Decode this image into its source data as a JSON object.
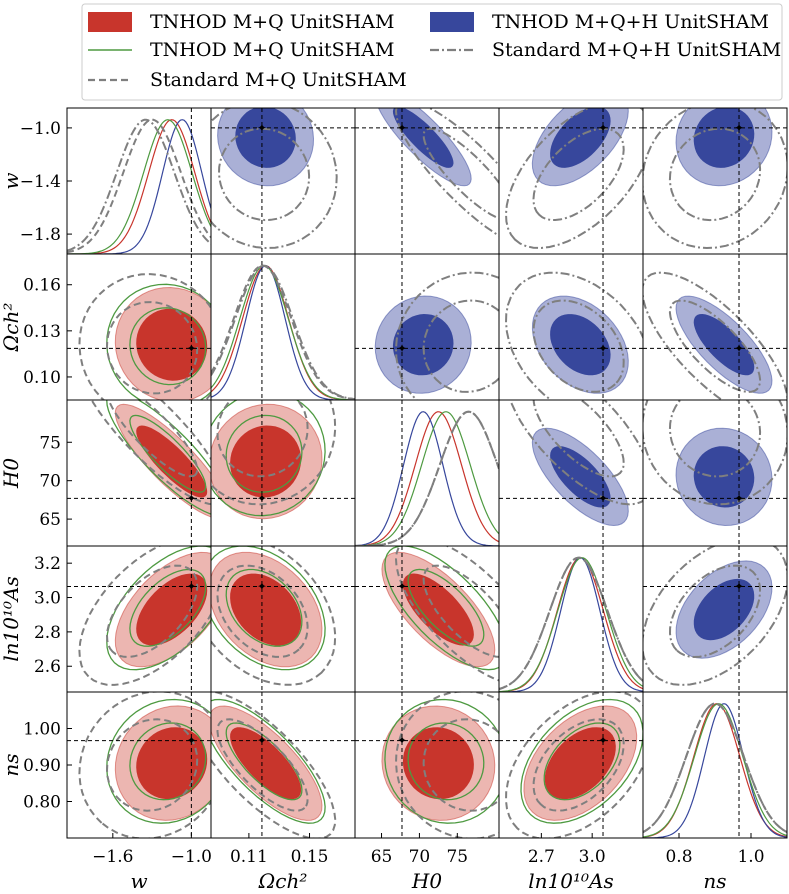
{
  "chart_data": {
    "type": "triangle-corner",
    "parameters": [
      {
        "key": "w",
        "label": "w",
        "range": [
          -1.95,
          -0.85
        ],
        "ticks": [
          -1.6,
          -1.0
        ],
        "tick_labels": [
          "−1.6",
          "−1.0"
        ],
        "ytick_labels": [
          "−1.0",
          "−1.4",
          "−1.8"
        ],
        "yticks": [
          -1.0,
          -1.4,
          -1.8
        ],
        "truth": -1.0
      },
      {
        "key": "omch2",
        "label": "Ωch²",
        "range": [
          0.085,
          0.18
        ],
        "ticks": [
          0.11,
          0.15
        ],
        "tick_labels": [
          "0.11",
          "0.15"
        ],
        "yticks": [
          0.16,
          0.13,
          0.1
        ],
        "ytick_labels": [
          "0.16",
          "0.13",
          "0.10"
        ],
        "truth": 0.1186
      },
      {
        "key": "H0",
        "label": "H0",
        "range": [
          61.5,
          80.5
        ],
        "ticks": [
          65,
          70,
          75
        ],
        "tick_labels": [
          "65",
          "70",
          "75"
        ],
        "yticks": [
          75,
          70,
          65
        ],
        "ytick_labels": [
          "75",
          "70",
          "65"
        ],
        "truth": 67.7
      },
      {
        "key": "lnAs",
        "label": "ln10¹⁰As",
        "range": [
          2.45,
          3.3
        ],
        "ticks": [
          2.7,
          3.0
        ],
        "tick_labels": [
          "2.7",
          "3.0"
        ],
        "yticks": [
          3.2,
          3.0,
          2.8,
          2.6
        ],
        "ytick_labels": [
          "3.2",
          "3.0",
          "2.8",
          "2.6"
        ],
        "truth": 3.064
      },
      {
        "key": "ns",
        "label": "ns",
        "range": [
          0.7,
          1.1
        ],
        "ticks": [
          0.8,
          1.0
        ],
        "tick_labels": [
          "0.8",
          "1.0"
        ],
        "yticks": [
          1.0,
          0.9,
          0.8
        ],
        "ytick_labels": [
          "1.00",
          "0.90",
          "0.80"
        ],
        "truth": 0.9667
      }
    ],
    "series": [
      {
        "name": "TNHOD M+Q UnitSHAM",
        "style": "filled",
        "color": "#c8352c",
        "light": "#ecb6b1",
        "mean": {
          "w": -1.15,
          "omch2": 0.121,
          "H0": 72.5,
          "lnAs": 2.93,
          "ns": 0.905
        }
      },
      {
        "name": "TNHOD M+Q+H UnitSHAM",
        "style": "filled",
        "color": "#37479c",
        "light": "#aab0d6",
        "mean": {
          "w": -1.07,
          "omch2": 0.121,
          "H0": 70.5,
          "lnAs": 2.93,
          "ns": 0.925
        }
      },
      {
        "name": "TNHOD M+Q UnitSHAM",
        "style": "solid-line",
        "color": "#4e9a41",
        "mean": {
          "w": -1.18,
          "omch2": 0.12,
          "H0": 73.5,
          "lnAs": 2.94,
          "ns": 0.91
        }
      },
      {
        "name": "Standard M+Q+H UnitSHAM",
        "style": "dashdot",
        "color": "#7f7f7f",
        "mean": {
          "w": -1.35,
          "omch2": 0.12,
          "H0": 76.5,
          "lnAs": 2.92,
          "ns": 0.9
        }
      },
      {
        "name": "Standard M+Q UnitSHAM",
        "style": "dashed",
        "color": "#7f7f7f",
        "mean": {
          "w": -1.3,
          "omch2": 0.119,
          "H0": 76.5,
          "lnAs": 2.92,
          "ns": 0.9
        }
      }
    ],
    "legend": {
      "placement": "top",
      "entries": [
        {
          "label": "TNHOD M+Q UnitSHAM",
          "kind": "patch",
          "color": "#c8352c"
        },
        {
          "label": "TNHOD M+Q UnitSHAM",
          "kind": "line",
          "color": "#4e9a41"
        },
        {
          "label": "Standard M+Q UnitSHAM",
          "kind": "dashed",
          "color": "#7f7f7f"
        },
        {
          "label": "TNHOD M+Q+H UnitSHAM",
          "kind": "patch",
          "color": "#37479c"
        },
        {
          "label": "Standard M+Q+H UnitSHAM",
          "kind": "dashdot",
          "color": "#7f7f7f"
        }
      ]
    }
  }
}
